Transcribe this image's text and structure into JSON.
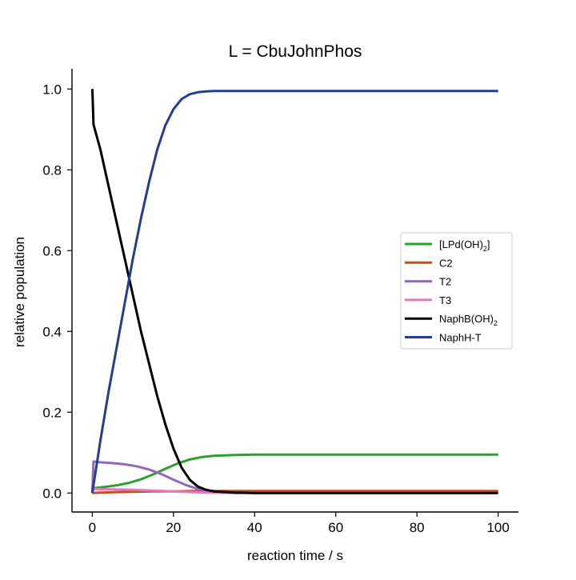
{
  "chart_data": {
    "type": "line",
    "title": "L = CbuJohnPhos",
    "xlabel": "reaction time / s",
    "ylabel": "relative population",
    "xlim": [
      -5,
      105
    ],
    "ylim": [
      -0.047,
      1.05
    ],
    "xticks": [
      0,
      20,
      40,
      60,
      80,
      100
    ],
    "xtick_labels": [
      "0",
      "20",
      "40",
      "60",
      "80",
      "100"
    ],
    "yticks": [
      0.0,
      0.2,
      0.4,
      0.6,
      0.8,
      1.0
    ],
    "ytick_labels": [
      "0.0",
      "0.2",
      "0.4",
      "0.6",
      "0.8",
      "1.0"
    ],
    "grid": false,
    "legend_position": "center-right",
    "series": [
      {
        "name": "[LPd(OH)2]",
        "label_main": "[LPd(OH)",
        "label_sub": "2",
        "label_tail": "]",
        "color": "#2ca02c",
        "x": [
          0,
          3,
          6,
          9,
          12,
          15,
          18,
          21,
          24,
          27,
          30,
          35,
          40,
          50,
          60,
          80,
          100
        ],
        "y": [
          0.012,
          0.015,
          0.019,
          0.025,
          0.034,
          0.046,
          0.06,
          0.073,
          0.083,
          0.089,
          0.092,
          0.094,
          0.095,
          0.095,
          0.095,
          0.095,
          0.095
        ]
      },
      {
        "name": "C2",
        "label_main": "C2",
        "label_sub": "",
        "label_tail": "",
        "color": "#c0501f",
        "x": [
          0,
          5,
          10,
          15,
          20,
          25,
          30,
          40,
          60,
          80,
          100
        ],
        "y": [
          0.0,
          0.002,
          0.003,
          0.004,
          0.004,
          0.005,
          0.005,
          0.005,
          0.005,
          0.005,
          0.005
        ]
      },
      {
        "name": "T2",
        "label_main": "T2",
        "label_sub": "",
        "label_tail": "",
        "color": "#9467bd",
        "x": [
          0,
          0.3,
          2,
          5,
          8,
          11,
          14,
          17,
          20,
          23,
          26,
          30,
          35,
          40,
          60,
          80,
          100
        ],
        "y": [
          0.0,
          0.078,
          0.076,
          0.074,
          0.071,
          0.066,
          0.058,
          0.047,
          0.033,
          0.02,
          0.01,
          0.004,
          0.001,
          0.0,
          0.0,
          0.0,
          0.0
        ]
      },
      {
        "name": "T3",
        "label_main": "T3",
        "label_sub": "",
        "label_tail": "",
        "color": "#e377c2",
        "x": [
          0,
          0.3,
          5,
          10,
          15,
          20,
          25,
          30,
          35,
          40,
          60,
          80,
          100
        ],
        "y": [
          0.0,
          0.01,
          0.009,
          0.008,
          0.006,
          0.004,
          0.002,
          0.001,
          0.0,
          0.0,
          0.0,
          0.0,
          0.0
        ]
      },
      {
        "name": "NaphB(OH)2",
        "label_main": "NaphB(OH)",
        "label_sub": "2",
        "label_tail": "",
        "color": "#000000",
        "x": [
          0,
          0.05,
          0.3,
          2,
          4,
          6,
          8,
          10,
          12,
          14,
          16,
          18,
          20,
          22,
          24,
          26,
          28,
          30,
          35,
          40,
          60,
          80,
          100
        ],
        "y": [
          1.0,
          0.99,
          0.912,
          0.85,
          0.76,
          0.67,
          0.58,
          0.49,
          0.4,
          0.32,
          0.24,
          0.17,
          0.11,
          0.063,
          0.033,
          0.016,
          0.008,
          0.004,
          0.001,
          0.0,
          0.0,
          0.0,
          0.0
        ]
      },
      {
        "name": "NaphH-T",
        "label_main": "NaphH-T",
        "label_sub": "",
        "label_tail": "",
        "color": "#233d8f",
        "x": [
          0,
          2,
          4,
          6,
          8,
          10,
          12,
          14,
          16,
          18,
          20,
          22,
          24,
          26,
          28,
          30,
          35,
          40,
          60,
          80,
          100
        ],
        "y": [
          0.0,
          0.13,
          0.25,
          0.36,
          0.47,
          0.58,
          0.68,
          0.77,
          0.85,
          0.91,
          0.95,
          0.975,
          0.987,
          0.992,
          0.994,
          0.995,
          0.995,
          0.995,
          0.995,
          0.995,
          0.995
        ]
      }
    ]
  }
}
